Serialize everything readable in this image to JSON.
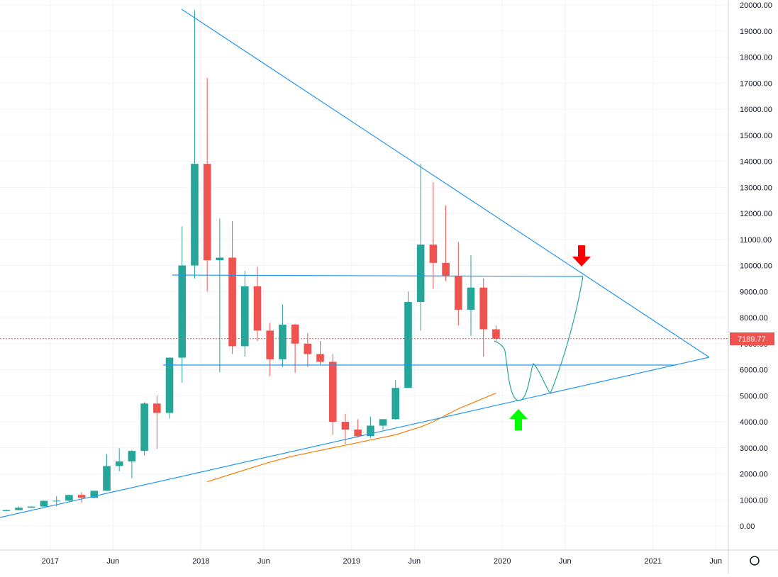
{
  "chart_data": {
    "type": "candlestick",
    "categories": [
      "2016-09",
      "2016-10",
      "2016-11",
      "2016-12",
      "2017-01",
      "2017-02",
      "2017-03",
      "2017-04",
      "2017-05",
      "2017-06",
      "2017-07",
      "2017-08",
      "2017-09",
      "2017-10",
      "2017-11",
      "2017-12",
      "2018-01",
      "2018-02",
      "2018-03",
      "2018-04",
      "2018-05",
      "2018-06",
      "2018-07",
      "2018-08",
      "2018-09",
      "2018-10",
      "2018-11",
      "2018-12",
      "2019-01",
      "2019-02",
      "2019-03",
      "2019-04",
      "2019-05",
      "2019-06",
      "2019-07",
      "2019-08",
      "2019-09",
      "2019-10",
      "2019-11",
      "2019-12"
    ],
    "open": [
      573,
      608,
      700,
      745,
      965,
      970,
      1190,
      1080,
      1350,
      2300,
      2480,
      2880,
      4700,
      4340,
      6460,
      10000,
      13900,
      10200,
      10300,
      6900,
      9200,
      7500,
      6400,
      7730,
      7000,
      6600,
      6300,
      4000,
      3700,
      3450,
      3850,
      4100,
      5300,
      8600,
      10800,
      10100,
      9600,
      8300,
      9150,
      7550
    ],
    "high": [
      628,
      740,
      755,
      970,
      1150,
      1200,
      1290,
      1350,
      2760,
      2980,
      2920,
      4750,
      5000,
      6470,
      11500,
      19800,
      17200,
      11800,
      11700,
      9800,
      9950,
      7800,
      8500,
      7760,
      7400,
      7100,
      6600,
      4300,
      4100,
      4200,
      4100,
      5600,
      9000,
      13900,
      13200,
      12300,
      10900,
      10400,
      9500,
      7700
    ],
    "low": [
      570,
      605,
      690,
      740,
      750,
      920,
      890,
      1060,
      1340,
      2100,
      1830,
      2700,
      2970,
      4120,
      5500,
      9500,
      9000,
      5900,
      6600,
      6500,
      7100,
      5750,
      6100,
      5880,
      6100,
      6200,
      3500,
      3150,
      3400,
      3380,
      3700,
      4080,
      5300,
      7500,
      9100,
      9400,
      7700,
      7300,
      6500,
      7050
    ],
    "close": [
      608,
      700,
      745,
      965,
      970,
      1190,
      1080,
      1350,
      2300,
      2480,
      2880,
      4700,
      4340,
      6460,
      10000,
      13900,
      10200,
      10300,
      6900,
      9200,
      7500,
      6400,
      7730,
      7000,
      6600,
      6300,
      4000,
      3700,
      3450,
      3850,
      4100,
      5300,
      8600,
      10800,
      10100,
      9600,
      8300,
      9150,
      7550,
      7190
    ],
    "ma": [
      null,
      null,
      null,
      null,
      null,
      null,
      null,
      null,
      null,
      null,
      null,
      null,
      null,
      null,
      null,
      null,
      1700,
      1850,
      2000,
      2150,
      2300,
      2450,
      2580,
      2700,
      2800,
      2900,
      3000,
      3100,
      3200,
      3300,
      3400,
      3500,
      3650,
      3800,
      4000,
      4250,
      4500,
      4700,
      4900,
      5100
    ],
    "up_color": "#26a69a",
    "down_color": "#ef5350",
    "ma_color": "#f57c00",
    "last_price": 7189.77,
    "xlim": [
      "2016-09",
      "2021-07"
    ],
    "xticks": [
      {
        "value": "2017-01",
        "label": "2017"
      },
      {
        "value": "2017-06",
        "label": "Jun"
      },
      {
        "value": "2018-01",
        "label": "2018"
      },
      {
        "value": "2018-06",
        "label": "Jun"
      },
      {
        "value": "2019-01",
        "label": "2019"
      },
      {
        "value": "2019-06",
        "label": "Jun"
      },
      {
        "value": "2020-01",
        "label": "2020"
      },
      {
        "value": "2020-06",
        "label": "Jun"
      },
      {
        "value": "2021-01",
        "label": "2021"
      },
      {
        "value": "2021-06",
        "label": "Jun"
      }
    ],
    "ylim": [
      -1000,
      20000
    ],
    "yticks": [
      {
        "value": 0,
        "label": "0.00"
      },
      {
        "value": 1000,
        "label": "1000.00"
      },
      {
        "value": 2000,
        "label": "2000.00"
      },
      {
        "value": 3000,
        "label": "3000.00"
      },
      {
        "value": 4000,
        "label": "4000.00"
      },
      {
        "value": 5000,
        "label": "5000.00"
      },
      {
        "value": 6000,
        "label": "6000.00"
      },
      {
        "value": 7000,
        "label": "7000.00"
      },
      {
        "value": 8000,
        "label": "8000.00"
      },
      {
        "value": 9000,
        "label": "9000.00"
      },
      {
        "value": 10000,
        "label": "10000.00"
      },
      {
        "value": 11000,
        "label": "11000.00"
      },
      {
        "value": 12000,
        "label": "12000.00"
      },
      {
        "value": 13000,
        "label": "13000.00"
      },
      {
        "value": 14000,
        "label": "14000.00"
      },
      {
        "value": 15000,
        "label": "15000.00"
      },
      {
        "value": 16000,
        "label": "16000.00"
      },
      {
        "value": 17000,
        "label": "17000.00"
      },
      {
        "value": 18000,
        "label": "18000.00"
      },
      {
        "value": 19000,
        "label": "19000.00"
      },
      {
        "value": 20000,
        "label": "20000.00"
      }
    ],
    "grid": true
  }
}
